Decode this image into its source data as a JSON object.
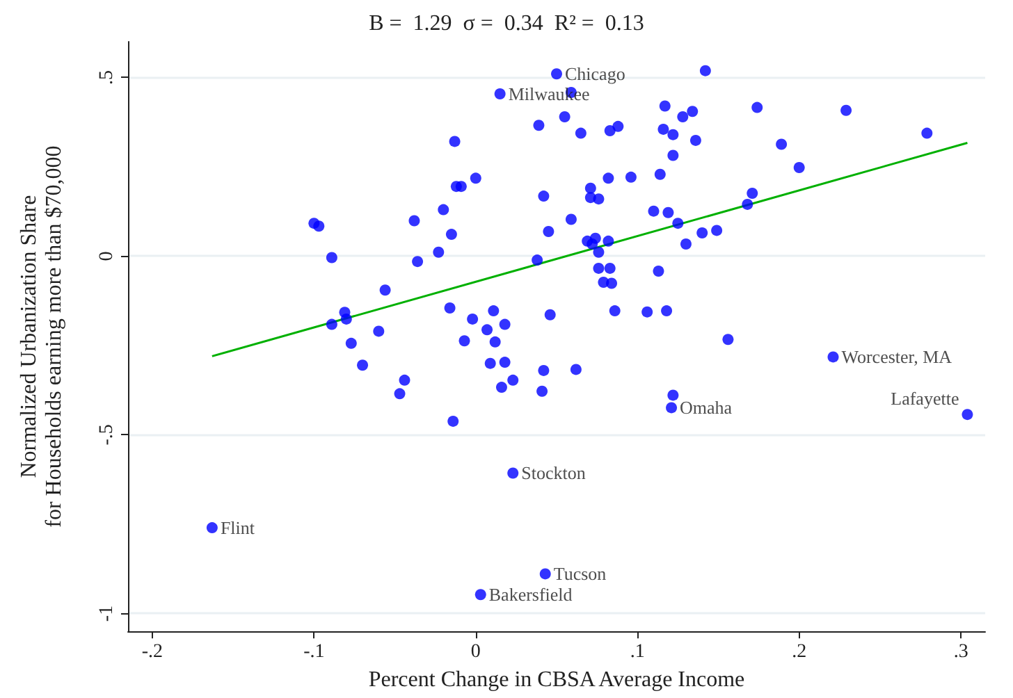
{
  "chart_data": {
    "type": "scatter",
    "title": "B =  1.29  σ =  0.34  R² =  0.13",
    "xlabel": "Percent Change in CBSA Average Income",
    "ylabel": "Normalized Urbanization Share\nfor Households earning more than $70,000",
    "xlim": [
      -0.215,
      0.315
    ],
    "ylim": [
      -1.05,
      0.6
    ],
    "xticks": [
      {
        "value": -0.2,
        "label": "-.2"
      },
      {
        "value": -0.1,
        "label": "-.1"
      },
      {
        "value": 0,
        "label": "0"
      },
      {
        "value": 0.1,
        "label": ".1"
      },
      {
        "value": 0.2,
        "label": ".2"
      },
      {
        "value": 0.3,
        "label": ".3"
      }
    ],
    "yticks": [
      {
        "value": -1,
        "label": "-1"
      },
      {
        "value": -0.5,
        "label": "-.5"
      },
      {
        "value": 0,
        "label": "0"
      },
      {
        "value": 0.5,
        "label": ".5"
      }
    ],
    "grid": "y",
    "marker": "circle",
    "series": [
      {
        "color": "#0000ff",
        "x": [
          0.05,
          0.015,
          0.221,
          0.304,
          0.121,
          0.122,
          0.023,
          -0.163,
          0.043,
          0.003,
          0.142,
          -0.1,
          -0.097,
          -0.089,
          -0.038,
          -0.036,
          -0.023,
          -0.02,
          -0.056,
          0.059,
          0.117,
          0.134,
          0.128,
          0.039,
          0.055,
          0.065,
          0.083,
          0.088,
          0.116,
          0.122,
          0.136,
          0.122,
          -0.013,
          -0.012,
          -0.009,
          0.0,
          -0.015,
          0.042,
          0.071,
          0.071,
          0.076,
          0.082,
          0.096,
          0.114,
          0.059,
          0.045,
          0.11,
          0.119,
          0.125,
          0.14,
          0.149,
          0.13,
          0.069,
          0.074,
          0.072,
          0.082,
          0.076,
          0.038,
          0.076,
          0.083,
          0.113,
          0.079,
          0.084,
          -0.016,
          -0.002,
          0.011,
          0.046,
          0.086,
          0.106,
          0.118,
          0.174,
          0.229,
          0.279,
          0.189,
          0.2,
          0.171,
          0.168,
          0.156,
          -0.081,
          -0.08,
          -0.089,
          -0.06,
          -0.077,
          -0.07,
          -0.044,
          -0.047,
          0.007,
          0.018,
          -0.007,
          0.012,
          0.009,
          0.018,
          0.023,
          0.016,
          0.042,
          0.062,
          0.041,
          -0.014
        ],
        "values": [
          0.51,
          0.454,
          -0.282,
          -0.443,
          -0.424,
          -0.389,
          -0.607,
          -0.76,
          -0.889,
          -0.947,
          0.519,
          0.092,
          0.084,
          -0.004,
          0.099,
          -0.015,
          0.011,
          0.13,
          -0.095,
          0.458,
          0.42,
          0.405,
          0.39,
          0.366,
          0.39,
          0.344,
          0.351,
          0.363,
          0.355,
          0.34,
          0.324,
          0.282,
          0.321,
          0.195,
          0.195,
          0.218,
          0.061,
          0.168,
          0.19,
          0.164,
          0.16,
          0.218,
          0.221,
          0.229,
          0.103,
          0.069,
          0.126,
          0.122,
          0.092,
          0.065,
          0.072,
          0.034,
          0.042,
          0.05,
          0.034,
          0.042,
          0.011,
          -0.011,
          -0.034,
          -0.034,
          -0.042,
          -0.073,
          -0.076,
          -0.145,
          -0.176,
          -0.153,
          -0.164,
          -0.153,
          -0.156,
          -0.153,
          0.416,
          0.408,
          0.344,
          0.313,
          0.248,
          0.176,
          0.145,
          -0.233,
          -0.157,
          -0.176,
          -0.191,
          -0.21,
          -0.244,
          -0.305,
          -0.347,
          -0.385,
          -0.206,
          -0.191,
          -0.237,
          -0.24,
          -0.3,
          -0.297,
          -0.347,
          -0.367,
          -0.32,
          -0.317,
          -0.378,
          -0.462
        ]
      },
      {
        "type": "line",
        "color": "#00b000",
        "marker": "none",
        "x": [
          -0.163,
          0.304
        ],
        "values": [
          -0.28,
          0.317
        ]
      }
    ],
    "annotations": [
      {
        "text": "Chicago",
        "x": 0.05,
        "y": 0.51
      },
      {
        "text": "Milwaukee",
        "x": 0.015,
        "y": 0.454
      },
      {
        "text": "Worcester, MA",
        "x": 0.221,
        "y": -0.282
      },
      {
        "text": "Lafayette",
        "x": 0.304,
        "y": -0.443
      },
      {
        "text": "Omaha",
        "x": 0.121,
        "y": -0.424
      },
      {
        "text": "Stockton",
        "x": 0.023,
        "y": -0.607
      },
      {
        "text": "Flint",
        "x": -0.163,
        "y": -0.76
      },
      {
        "text": "Tucson",
        "x": 0.043,
        "y": -0.889
      },
      {
        "text": "Bakersfield",
        "x": 0.003,
        "y": -0.947
      }
    ]
  }
}
